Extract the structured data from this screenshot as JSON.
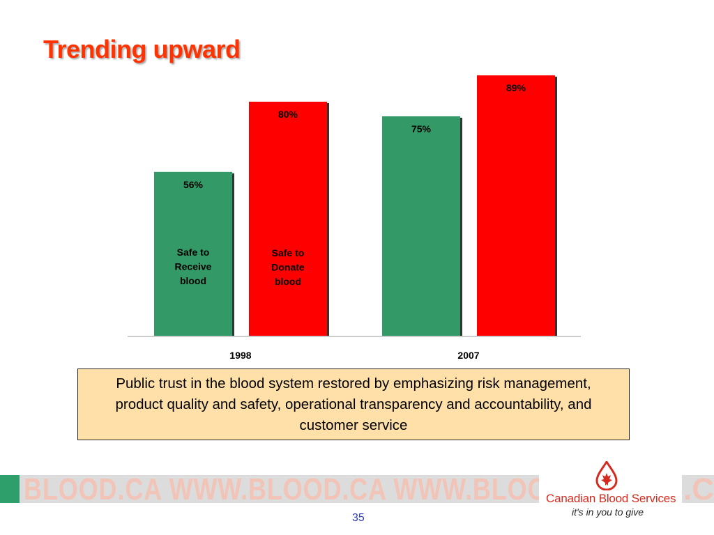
{
  "slide": {
    "title": "Trending upward",
    "callout": "Public trust in the blood system restored by emphasizing risk management, product quality and safety, operational transparency and accountability, and customer service",
    "page_number": "35"
  },
  "footer": {
    "url_text": "BLOOD.CA WWW.BLOOD.CA WWW.BLOOD.CA",
    "url_text_right": ".CA",
    "organization": "Canadian Blood Services",
    "tagline": "it's in you to give"
  },
  "chart_data": {
    "type": "bar",
    "categories": [
      "1998",
      "2007"
    ],
    "series": [
      {
        "label": "Safe to Receive blood",
        "values": [
          56,
          75
        ],
        "color": "#339966"
      },
      {
        "label": "Safe to Donate blood",
        "values": [
          80,
          89
        ],
        "color": "#ff0000"
      }
    ],
    "value_labels": [
      [
        "56%",
        "75%"
      ],
      [
        "80%",
        "89%"
      ]
    ],
    "in_bar_labels": [
      [
        "Safe to",
        "Receive",
        "blood"
      ],
      [
        "Safe to",
        "Donate",
        "blood"
      ]
    ],
    "ylim": [
      0,
      100
    ],
    "grid": false,
    "legend": "none"
  },
  "colors": {
    "title": "#ff3300",
    "callout_bg": "#ffe0a8",
    "footer_green": "#2e9e6b",
    "logo_red": "#d42a1f",
    "page_number": "#2f3eb5"
  }
}
